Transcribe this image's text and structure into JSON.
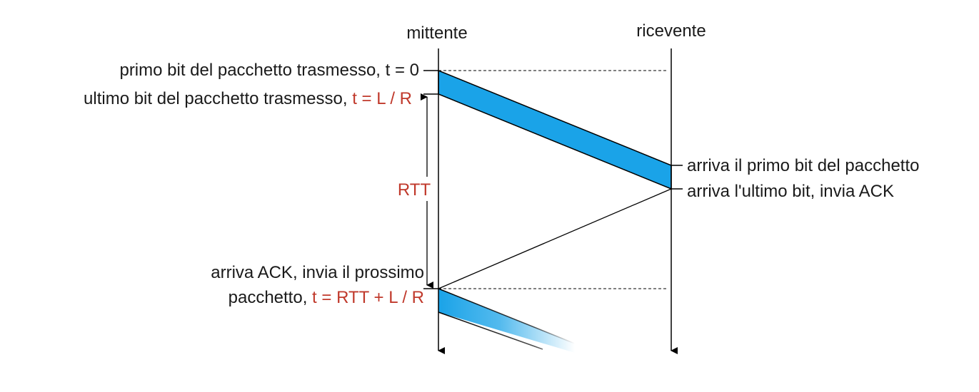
{
  "actors": {
    "sender": "mittente",
    "receiver": "ricevente"
  },
  "labels": {
    "first_bit_sent": {
      "text": "primo bit del pacchetto trasmesso, t = 0",
      "formula": ""
    },
    "last_bit_sent": {
      "text": "ultimo bit del pacchetto trasmesso, ",
      "formula": "t = L / R"
    },
    "rtt": "RTT",
    "first_bit_arrives": "arriva il primo bit del pacchetto",
    "last_bit_arrives": "arriva l'ultimo bit, invia ACK",
    "ack_arrives_line1": "arriva ACK, invia il prossimo",
    "ack_arrives_line2": {
      "text": "pacchetto, ",
      "formula": "t = RTT + L / R"
    }
  },
  "colors": {
    "text": "#1a1a1a",
    "formula": "#c0392b",
    "packet_fill": "#1aa3e8",
    "line": "#000000"
  }
}
